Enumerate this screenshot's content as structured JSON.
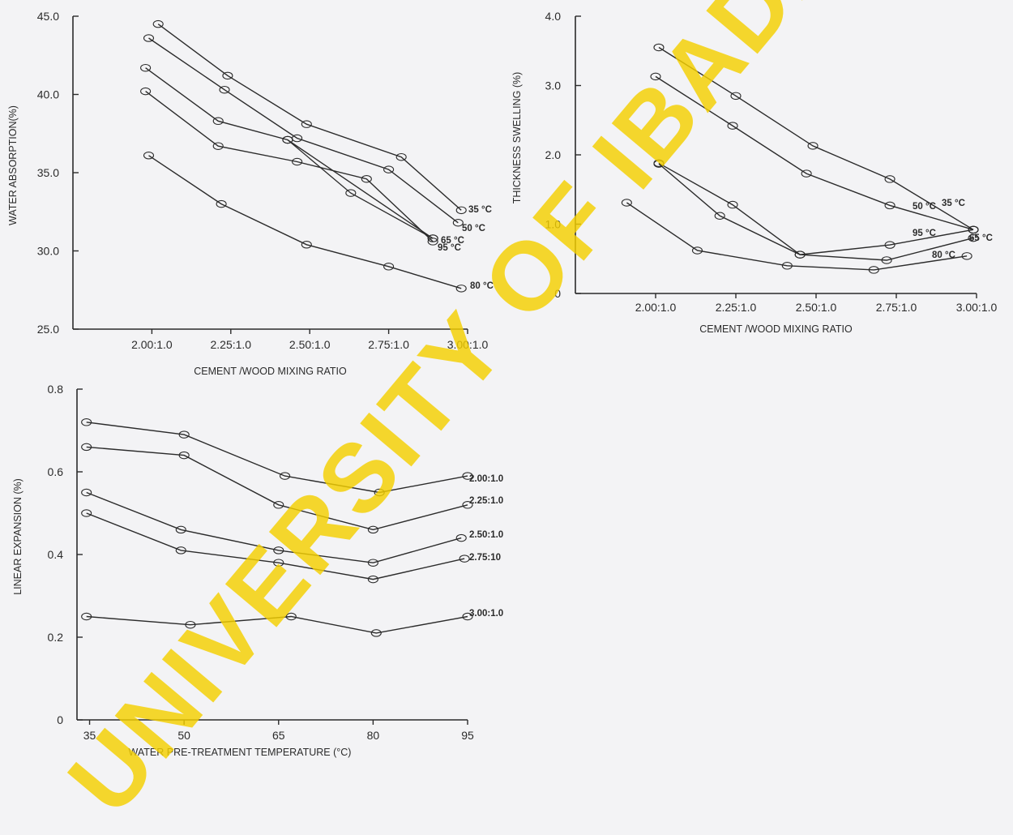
{
  "watermark": "UNIVERSITY OF IBADAN",
  "colors": {
    "ink": "#2b2b2b",
    "paper": "#f3f3f5",
    "watermark": "#f5d000"
  },
  "chart_data": [
    {
      "id": "water_absorption",
      "type": "line",
      "xlabel": "CEMENT /WOOD MIXING RATIO",
      "ylabel": "WATER ABSORPTION(%)",
      "xticks": [
        "2.00:1.0",
        "2.25:1.0",
        "2.50:1.0",
        "2.75:1.0",
        "3.00:1.0"
      ],
      "xlim": [
        1.75,
        3.0
      ],
      "yticks": [
        "25.0",
        "30.0",
        "35.0",
        "40.0",
        "45.0"
      ],
      "ylim": [
        25,
        45
      ],
      "grid": false,
      "series": [
        {
          "name": "35 °C",
          "x": [
            2.02,
            2.24,
            2.49,
            2.79,
            2.98
          ],
          "y": [
            44.5,
            41.2,
            38.1,
            36.0,
            32.6
          ]
        },
        {
          "name": "50 °C",
          "x": [
            1.99,
            2.23,
            2.46,
            2.75,
            2.97
          ],
          "y": [
            43.6,
            40.3,
            37.2,
            35.2,
            31.8
          ]
        },
        {
          "name": "65 °C",
          "x": [
            1.98,
            2.21,
            2.43,
            2.89
          ],
          "y": [
            41.7,
            38.3,
            37.1,
            30.8
          ]
        },
        {
          "name": "95 °C",
          "x": [
            1.98,
            2.21,
            2.46,
            2.68,
            2.89
          ],
          "y": [
            40.2,
            36.7,
            35.7,
            34.6,
            30.6
          ]
        },
        {
          "name": "80 °C",
          "x": [
            1.99,
            2.22,
            2.49,
            2.75,
            2.98
          ],
          "y": [
            36.1,
            33.0,
            30.4,
            29.0,
            27.6
          ]
        }
      ],
      "dashed_segments": [
        {
          "x": [
            2.43,
            2.63,
            2.89
          ],
          "y": [
            37.1,
            33.7,
            30.8
          ]
        }
      ]
    },
    {
      "id": "thickness_swelling",
      "type": "line",
      "xlabel": "CEMENT /WOOD MIXING RATIO",
      "ylabel": "THICKNESS SWELLING (%)",
      "xticks": [
        "2.00:1.0",
        "2.25:1.0",
        "2.50:1.0",
        "2.75:1.0",
        "3.00:1.0"
      ],
      "xlim": [
        1.75,
        3.0
      ],
      "yticks": [
        "0",
        "1.0",
        "2.0",
        "3.0",
        "4.0"
      ],
      "ylim": [
        0,
        4
      ],
      "grid": false,
      "series": [
        {
          "name": "35 °C",
          "x": [
            2.01,
            2.25,
            2.49,
            2.73,
            2.99
          ],
          "y": [
            3.55,
            2.85,
            2.13,
            1.65,
            0.92
          ]
        },
        {
          "name": "50 °C",
          "x": [
            2.0,
            2.24,
            2.47,
            2.73,
            2.99
          ],
          "y": [
            3.13,
            2.42,
            1.73,
            1.27,
            0.92
          ]
        },
        {
          "name": "65 °C",
          "x": [
            2.01,
            2.24,
            2.45,
            2.72,
            2.99
          ],
          "y": [
            1.88,
            1.28,
            0.56,
            0.48,
            0.8
          ]
        },
        {
          "name": "95 °C",
          "x": [
            2.01,
            2.2,
            2.45,
            2.73,
            2.99
          ],
          "y": [
            1.87,
            1.12,
            0.56,
            0.7,
            0.92
          ]
        },
        {
          "name": "80 °C",
          "x": [
            1.91,
            2.13,
            2.41,
            2.68,
            2.97
          ],
          "y": [
            1.31,
            0.62,
            0.4,
            0.34,
            0.54
          ]
        }
      ]
    },
    {
      "id": "linear_expansion",
      "type": "line",
      "xlabel": "WATER PRE-TREATMENT TEMPERATURE (°C)",
      "ylabel": "LINEAR EXPANSION (%)",
      "xticks": [
        "35",
        "50",
        "65",
        "80",
        "95"
      ],
      "xlim": [
        33,
        95
      ],
      "yticks": [
        "0",
        "0.2",
        "0.4",
        "0.6",
        "0.8"
      ],
      "ylim": [
        0,
        0.8
      ],
      "grid": false,
      "series": [
        {
          "name": "2.00:1.0",
          "x": [
            34.5,
            50,
            66,
            81,
            95
          ],
          "y": [
            0.72,
            0.69,
            0.59,
            0.55,
            0.59
          ]
        },
        {
          "name": "2.25:1.0",
          "x": [
            34.5,
            50,
            65,
            80,
            95
          ],
          "y": [
            0.66,
            0.64,
            0.52,
            0.46,
            0.52
          ]
        },
        {
          "name": "2.50:1.0",
          "x": [
            34.5,
            49.5,
            65,
            80,
            94
          ],
          "y": [
            0.55,
            0.46,
            0.41,
            0.38,
            0.44
          ]
        },
        {
          "name": "2.75:10",
          "x": [
            34.5,
            49.5,
            65,
            80,
            94.5
          ],
          "y": [
            0.5,
            0.41,
            0.38,
            0.34,
            0.39
          ]
        },
        {
          "name": "3.00:1.0",
          "x": [
            34.5,
            51,
            67,
            80.5,
            95
          ],
          "y": [
            0.25,
            0.23,
            0.25,
            0.21,
            0.25
          ]
        }
      ]
    }
  ]
}
